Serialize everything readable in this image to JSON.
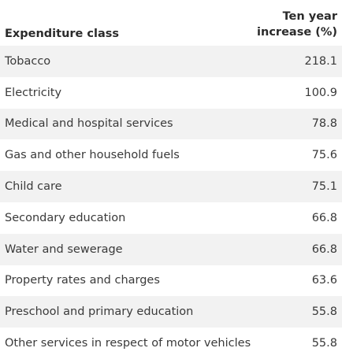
{
  "table": {
    "header": {
      "class_label": "Expenditure class",
      "increase_label_line1": "Ten year",
      "increase_label_line2": "increase (%)"
    },
    "rows": [
      {
        "label": "Tobacco",
        "value": "218.1"
      },
      {
        "label": "Electricity",
        "value": "100.9"
      },
      {
        "label": "Medical and hospital services",
        "value": "78.8"
      },
      {
        "label": "Gas and other household fuels",
        "value": "75.6"
      },
      {
        "label": "Child care",
        "value": "75.1"
      },
      {
        "label": "Secondary education",
        "value": "66.8"
      },
      {
        "label": "Water and sewerage",
        "value": "66.8"
      },
      {
        "label": "Property rates and charges",
        "value": "63.6"
      },
      {
        "label": "Preschool and primary education",
        "value": "55.8"
      },
      {
        "label": "Other services in respect of motor vehicles",
        "value": "55.8"
      }
    ]
  },
  "colors": {
    "stripe": "#f2f2f2",
    "text": "#3a3a3a",
    "header_text": "#2b2b2b"
  }
}
